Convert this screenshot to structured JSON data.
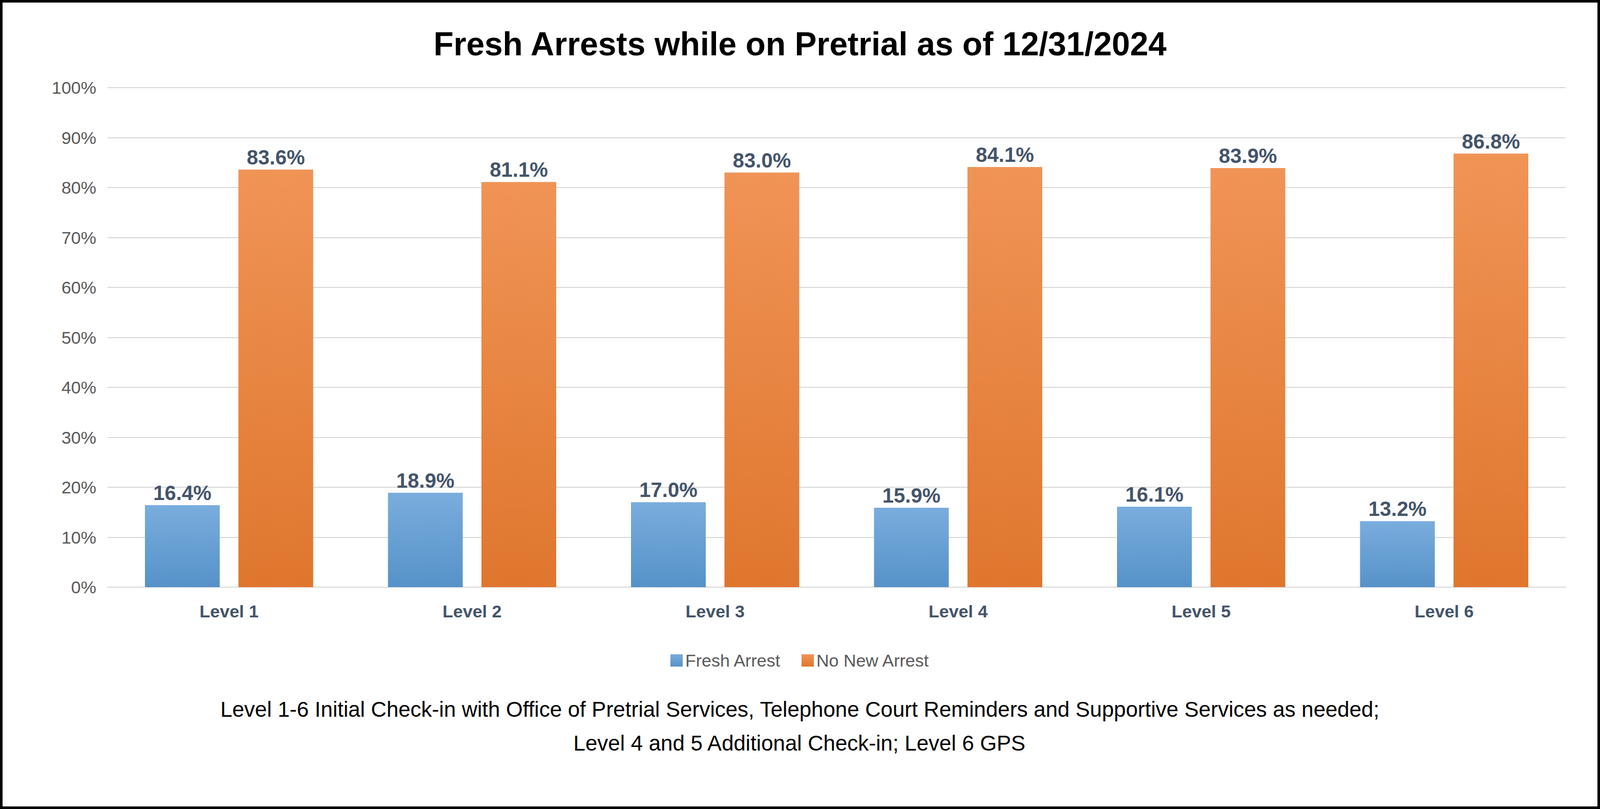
{
  "chart_data": {
    "type": "bar",
    "title": "Fresh Arrests while on Pretrial as of 12/31/2024",
    "categories": [
      "Level 1",
      "Level 2",
      "Level 3",
      "Level 4",
      "Level 5",
      "Level 6"
    ],
    "series": [
      {
        "name": "Fresh Arrest",
        "color": "#5b9bd5",
        "values": [
          16.4,
          18.9,
          17.0,
          15.9,
          16.1,
          13.2
        ],
        "value_labels": [
          "16.4%",
          "18.9%",
          "17.0%",
          "15.9%",
          "16.1%",
          "13.2%"
        ]
      },
      {
        "name": "No New Arrest",
        "color": "#ed7d31",
        "values": [
          83.6,
          81.1,
          83.0,
          84.1,
          83.9,
          86.8
        ],
        "value_labels": [
          "83.6%",
          "81.1%",
          "83.0%",
          "84.1%",
          "83.9%",
          "86.8%"
        ]
      }
    ],
    "ylim": [
      0,
      100
    ],
    "yticks": [
      {
        "value": 0,
        "label": "0%"
      },
      {
        "value": 10,
        "label": "10%"
      },
      {
        "value": 20,
        "label": "20%"
      },
      {
        "value": 30,
        "label": "30%"
      },
      {
        "value": 40,
        "label": "40%"
      },
      {
        "value": 50,
        "label": "50%"
      },
      {
        "value": 60,
        "label": "60%"
      },
      {
        "value": 70,
        "label": "70%"
      },
      {
        "value": 80,
        "label": "80%"
      },
      {
        "value": 90,
        "label": "90%"
      },
      {
        "value": 100,
        "label": "100%"
      }
    ],
    "grid": true,
    "legend": "bottom",
    "data_labels": true,
    "annotations": [
      "Level 1-6 Initial Check-in with Office of Pretrial Services, Telephone Court Reminders and Supportive Services as needed;",
      "Level 4 and 5 Additional Check-in; Level 6 GPS"
    ]
  }
}
